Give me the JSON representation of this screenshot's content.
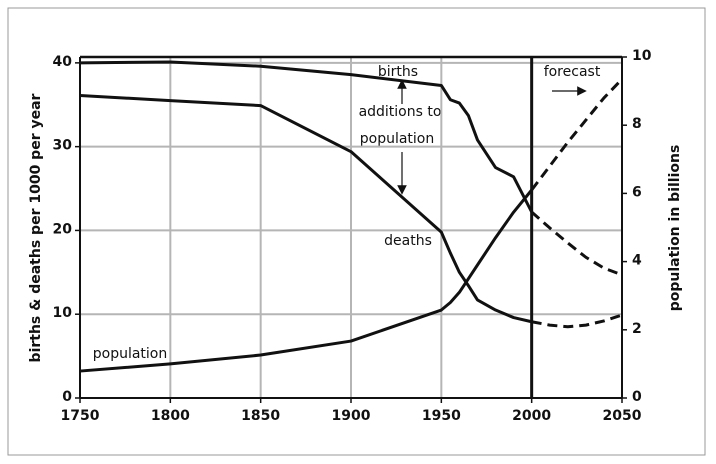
{
  "chart_data": {
    "type": "line",
    "x": [
      1750,
      1800,
      1850,
      1900,
      1950,
      1955,
      1960,
      1965,
      1970,
      1980,
      1990,
      2000,
      2010,
      2020,
      2030,
      2040,
      2050
    ],
    "forecast_start": 2000,
    "forecast_label": "forecast",
    "additions_label": [
      "additions to",
      "population"
    ],
    "ylabel": "births & deaths per 1000 per year",
    "y2label": "population in billions",
    "series": [
      {
        "name": "births",
        "color": "#111111",
        "values": [
          40,
          40.1,
          39.6,
          38.6,
          37.3,
          35.6,
          35.2,
          33.7,
          30.8,
          27.5,
          26.4,
          22.2,
          20.3,
          18.5,
          16.8,
          15.5,
          14.7
        ]
      },
      {
        "name": "deaths",
        "color": "#111111",
        "values": [
          36.1,
          35.5,
          34.9,
          29.4,
          19.8,
          17.3,
          15,
          13.4,
          11.7,
          10.5,
          9.6,
          9.1,
          8.7,
          8.5,
          8.7,
          9.2,
          9.9
        ]
      },
      {
        "name": "population",
        "color": "#111111",
        "axis": "y2",
        "values": [
          0.79,
          1.0,
          1.26,
          1.67,
          2.58,
          2.8,
          3.1,
          3.5,
          3.9,
          4.7,
          5.45,
          6.1,
          6.8,
          7.5,
          8.15,
          8.8,
          9.35
        ]
      }
    ],
    "xlim": [
      1750,
      2050
    ],
    "xticks": [
      1750,
      1800,
      1850,
      1900,
      1950,
      2000,
      2050
    ],
    "ylim": [
      0,
      40.7
    ],
    "yticks": [
      0,
      10,
      20,
      30,
      40
    ],
    "y2lim": [
      0,
      10
    ],
    "y2ticks": [
      0,
      2,
      4,
      6,
      8,
      10
    ],
    "grid": true
  }
}
